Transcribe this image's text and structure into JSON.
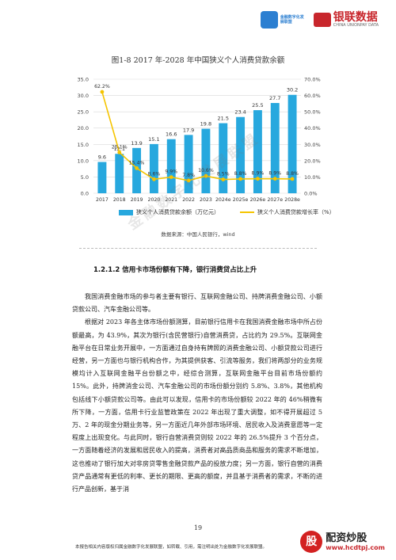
{
  "header": {
    "logo1_text": "金融数字化发展联盟",
    "logo2_text": "银联数据",
    "logo2_sub": "CHINA UNIONPAY DATA"
  },
  "figure": {
    "title": "图1-8  2017 年-2028 年中国狭义个人消费贷款余额",
    "source": "数据来源：中国人民银行，wind",
    "legend_bar": "狭义个人消费贷款余额（万亿元）",
    "legend_line": "狭义个人消费贷款增长率（%）"
  },
  "chart_data": {
    "type": "bar",
    "categories": [
      "2017",
      "2018",
      "2019",
      "2020",
      "2021",
      "2022",
      "2023",
      "2024e",
      "2025e",
      "2026e",
      "2027e",
      "2028e"
    ],
    "series": [
      {
        "name": "狭义个人消费贷款余额（万亿元）",
        "type": "bar",
        "axis": "left",
        "values": [
          9.6,
          12.1,
          13.9,
          15.1,
          16.6,
          17.9,
          19.8,
          21.5,
          23.4,
          25.5,
          27.7,
          30.2
        ],
        "labels": [
          "9.6",
          "12.1",
          "13.9",
          "15.1",
          "16.6",
          "17.9",
          "19.8",
          "21.5",
          "23.4",
          "25.5",
          "27.7",
          "30.2"
        ]
      },
      {
        "name": "狭义个人消费贷款增长率（%）",
        "type": "line",
        "axis": "right",
        "values": [
          62.2,
          25.1,
          15.4,
          8.6,
          9.9,
          7.8,
          10.6,
          8.5,
          8.8,
          8.9,
          8.9,
          8.8
        ],
        "labels": [
          "62.2%",
          "25.1%",
          "15.4%",
          "8.6%",
          "9.9%",
          "7.8%",
          "10.6%",
          "8.5%",
          "8.8%",
          "8.9%",
          "8.9%",
          "8.8%"
        ]
      }
    ],
    "ylim_left": [
      0,
      35
    ],
    "yticks_left": [
      "0.0",
      "5.0",
      "10.0",
      "15.0",
      "20.0",
      "25.0",
      "30.0",
      "35.0"
    ],
    "ylim_right": [
      0,
      70
    ],
    "yticks_right": [
      "0.0%",
      "10.0%",
      "20.0%",
      "30.0%",
      "40.0%",
      "50.0%",
      "60.0%",
      "70.0%"
    ],
    "colors": {
      "bar": "#27a8de",
      "line": "#f5c400"
    },
    "grid": true,
    "legend": "bottom"
  },
  "section": {
    "heading": "1.2.1.2  信用卡市场份额有下降，银行消费贷占比上升"
  },
  "body": {
    "p1": "我国消费金融市场的参与者主要有银行、互联网金融公司、持牌消费金融公司、小额贷款公司、汽车金融公司等。",
    "p2": "根据对 2023 年各主体市场份额测算，目前银行信用卡在我国消费金融市场中所占份额最高，为 43.9%，其次为银行(含民营银行)自营消费贷，占比约为 29.5%。互联网金融平台在日常业务开展中，一方面通过自身持有牌照的消费金融公司、小额贷款公司进行经营，另一方面也与银行机构合作，为其提供获客、引流等服务，我们将两部分的业务规模均计入互联网金融平台份额之中，经综合测算，互联网金融平台目前市场份额约 15%。此外，持牌消金公司、汽车金融公司的市场份额分别约 5.8%、3.8%，其他机构包括线下小额贷款公司等。由此可以发现，信用卡的市场份额较 2022 年的 46%稍微有所下降，一方面，信用卡行业监管政策在 2022 年出现了重大调整，如不得开展超过 5 万、2 年的现金分期业务等，另一方面近几年外部市场环境、居民收入及消费意愿等一定程度上出现变化。与此同时，银行自营消费贷则较 2022 年的 26.5%提升 3 个百分点，一方面随着经济的发展和居民收入的提高，消费者对高品质商品和服务的需求不断增加，这也推动了银行加大对非房贷零售金融贷款产品的投放力度；另一方面，银行自营的消费贷产品通常有更低的利率、更长的期限、更高的额度，并且基于消费者的需求，不断的进行产品创新，基于消"
  },
  "page": {
    "number": "19",
    "footer": "本报告相关内容版权归属金融数字化发展联盟，如转载、引用，需注明出处为金融数字化发展联盟。",
    "watermark_name": "配资炒股",
    "watermark_url": "www.hcdtpj.com",
    "watermark_icon": "股",
    "diagonal_watermark": "金融数字化发展联盟"
  }
}
